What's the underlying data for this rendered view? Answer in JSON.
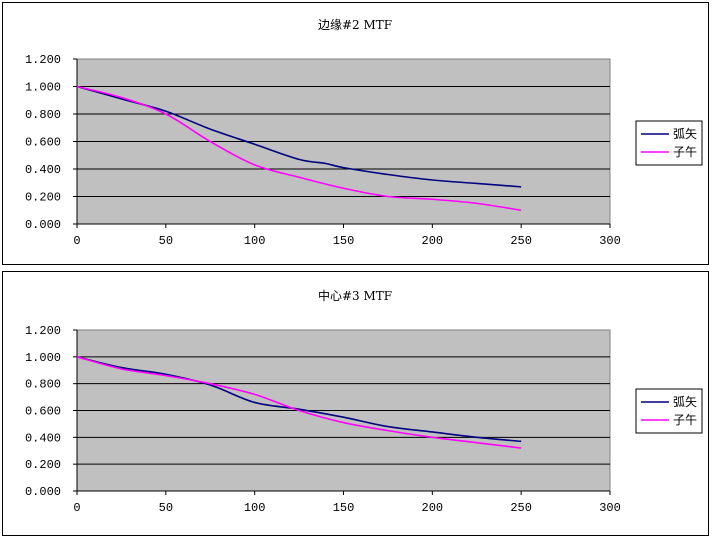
{
  "chart_data": [
    {
      "type": "line",
      "title": "边缘#2 MTF",
      "xlabel": "",
      "ylabel": "",
      "xlim": [
        0,
        300
      ],
      "ylim": [
        0,
        1.2
      ],
      "xticks": [
        "0",
        "50",
        "100",
        "150",
        "200",
        "250",
        "300"
      ],
      "yticks": [
        "0.000",
        "0.200",
        "0.400",
        "0.600",
        "0.800",
        "1.000",
        "1.200"
      ],
      "grid": true,
      "legend": "right",
      "series": [
        {
          "name": "弧矢",
          "color": "#000080",
          "x": [
            0,
            25,
            50,
            75,
            100,
            125,
            140,
            150,
            175,
            200,
            225,
            250
          ],
          "y": [
            1.0,
            0.91,
            0.82,
            0.69,
            0.58,
            0.47,
            0.44,
            0.41,
            0.36,
            0.32,
            0.295,
            0.27
          ]
        },
        {
          "name": "子午",
          "color": "#ff00ff",
          "x": [
            0,
            25,
            50,
            75,
            100,
            125,
            150,
            175,
            200,
            225,
            250
          ],
          "y": [
            1.0,
            0.92,
            0.8,
            0.6,
            0.43,
            0.34,
            0.26,
            0.2,
            0.18,
            0.15,
            0.1
          ]
        }
      ]
    },
    {
      "type": "line",
      "title": "中心#3 MTF",
      "xlabel": "",
      "ylabel": "",
      "xlim": [
        0,
        300
      ],
      "ylim": [
        0,
        1.2
      ],
      "xticks": [
        "0",
        "50",
        "100",
        "150",
        "200",
        "250",
        "300"
      ],
      "yticks": [
        "0.000",
        "0.200",
        "0.400",
        "0.600",
        "0.800",
        "1.000",
        "1.200"
      ],
      "grid": true,
      "legend": "right",
      "series": [
        {
          "name": "弧矢",
          "color": "#000080",
          "x": [
            0,
            25,
            50,
            75,
            100,
            125,
            150,
            175,
            200,
            225,
            250
          ],
          "y": [
            1.0,
            0.92,
            0.87,
            0.79,
            0.66,
            0.61,
            0.55,
            0.48,
            0.44,
            0.4,
            0.37
          ]
        },
        {
          "name": "子午",
          "color": "#ff00ff",
          "x": [
            0,
            25,
            50,
            75,
            100,
            125,
            150,
            175,
            200,
            225,
            250
          ],
          "y": [
            1.0,
            0.91,
            0.86,
            0.8,
            0.72,
            0.6,
            0.51,
            0.45,
            0.4,
            0.36,
            0.32
          ]
        }
      ]
    }
  ]
}
